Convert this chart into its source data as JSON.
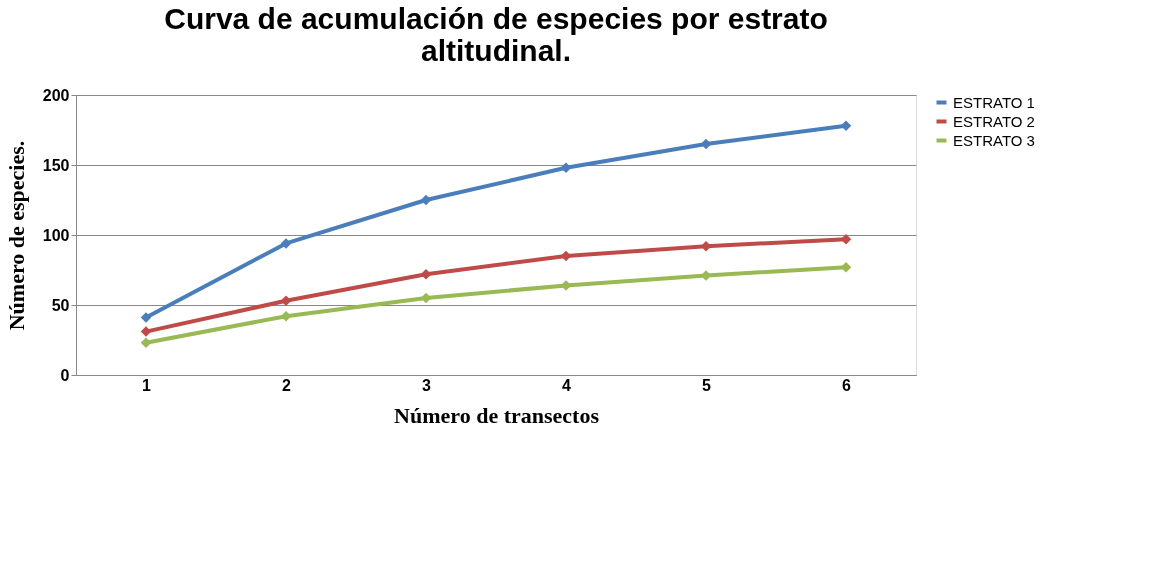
{
  "chart_data": {
    "type": "line",
    "title": [
      "Curva de acumulación de especies por estrato",
      "altitudinal."
    ],
    "xlabel": "Número de transectos",
    "ylabel": "Número de especies.",
    "categories": [
      "1",
      "2",
      "3",
      "4",
      "5",
      "6"
    ],
    "series": [
      {
        "name": "ESTRATO 1",
        "color": "#4a7ebb",
        "values": [
          41,
          94,
          125,
          148,
          165,
          178
        ]
      },
      {
        "name": "ESTRATO 2",
        "color": "#be4b48",
        "values": [
          31,
          53,
          72,
          85,
          92,
          97
        ]
      },
      {
        "name": "ESTRATO 3",
        "color": "#98b954",
        "values": [
          23,
          42,
          55,
          64,
          71,
          77
        ]
      }
    ],
    "ylim": [
      0,
      200
    ],
    "yticks": [
      0,
      50,
      100,
      150,
      200
    ],
    "grid": "y",
    "legend": "right",
    "marker": "diamond",
    "line_style": "solid"
  }
}
